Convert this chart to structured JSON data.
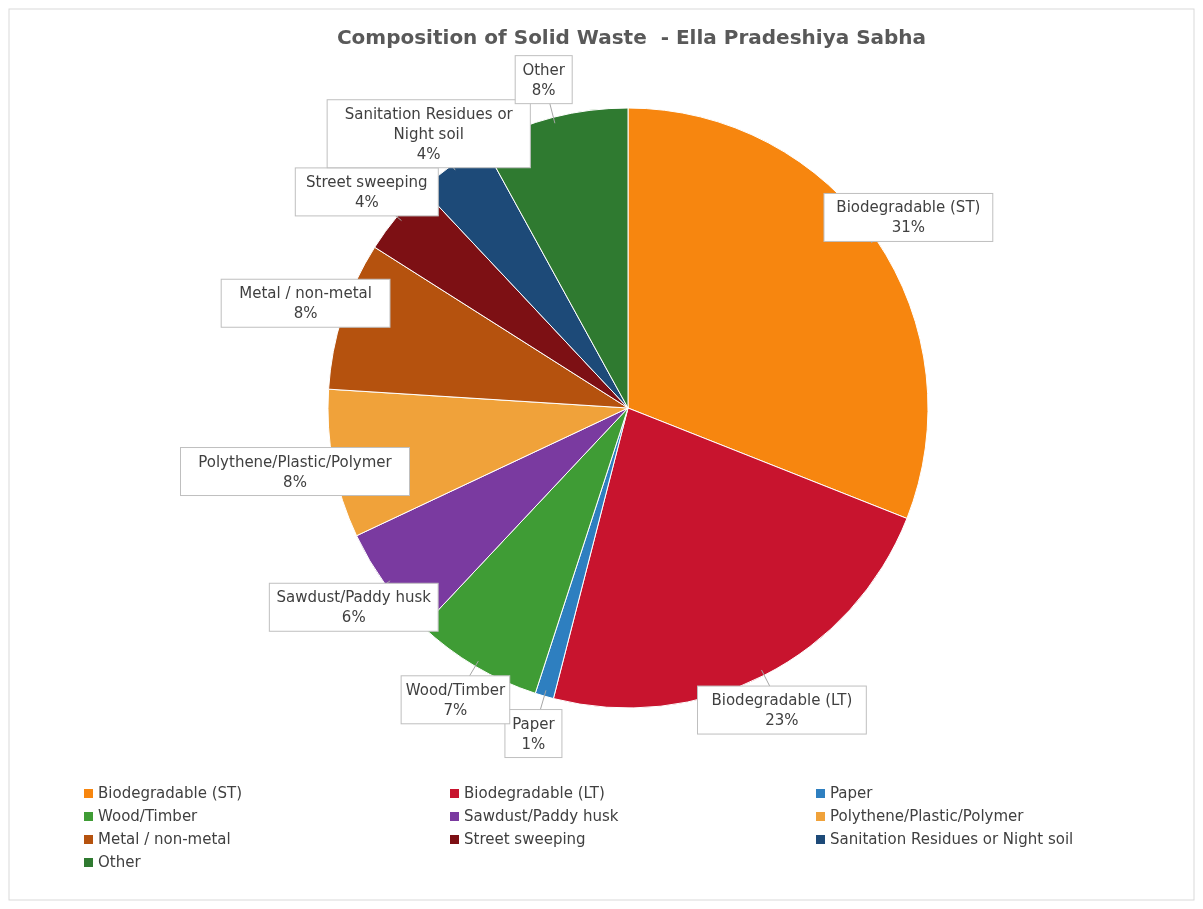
{
  "chart_data": {
    "type": "pie",
    "title": "Composition of Solid Waste  - Ella Pradeshiya Sabha",
    "categories": [
      "Biodegradable (ST)",
      "Biodegradable (LT)",
      "Paper",
      "Wood/Timber",
      "Sawdust/Paddy husk",
      "Polythene/Plastic/Polymer",
      "Metal  / non-metal",
      "Street sweeping",
      "Sanitation Residues or Night soil",
      "Other"
    ],
    "values": [
      31,
      23,
      1,
      7,
      6,
      8,
      8,
      4,
      4,
      8
    ],
    "colors": [
      "#f7860f",
      "#c8142e",
      "#2e7fc0",
      "#3f9c35",
      "#7a3aa0",
      "#f0a23a",
      "#b5520e",
      "#7d1014",
      "#1d4a78",
      "#2f7a30"
    ],
    "value_labels": [
      "31%",
      "23%",
      "1%",
      "7%",
      "6%",
      "8%",
      "8%",
      "4%",
      "4%",
      "8%"
    ],
    "legend": "bottom"
  }
}
